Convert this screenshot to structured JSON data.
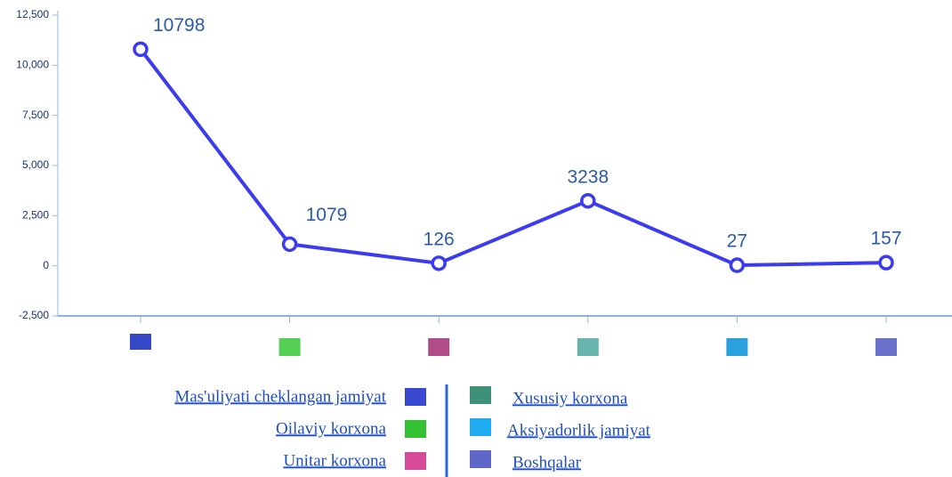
{
  "chart_data": {
    "type": "line",
    "categories": [
      "Mas'uliyati cheklangan jamiyat",
      "Oilaviy korxona",
      "Unitar korxona",
      "Xususiy korxona",
      "Aksiyadorlik jamiyat",
      "Boshqalar"
    ],
    "values": [
      10798,
      1079,
      126,
      3238,
      27,
      157
    ],
    "color": "#3b3bef",
    "category_colors": [
      "#3548c6",
      "#55d055",
      "#b04c88",
      "#67b5ac",
      "#2aa0dc",
      "#6a72cc"
    ],
    "legend_colors": [
      "#3a4ad0",
      "#33c233",
      "#d64a98",
      "#3e9079",
      "#20aaf0",
      "#5f68c8"
    ],
    "ylim": [
      -2500,
      12500
    ],
    "yticks": [
      {
        "value": -2500,
        "label": "-2,500"
      },
      0,
      {
        "value": 2500,
        "label": "2,500"
      },
      {
        "value": 5000,
        "label": "5,000"
      },
      {
        "value": 7500,
        "label": "7,500"
      },
      {
        "value": 10000,
        "label": "10,000"
      },
      {
        "value": 12500,
        "label": "12,500"
      }
    ]
  }
}
